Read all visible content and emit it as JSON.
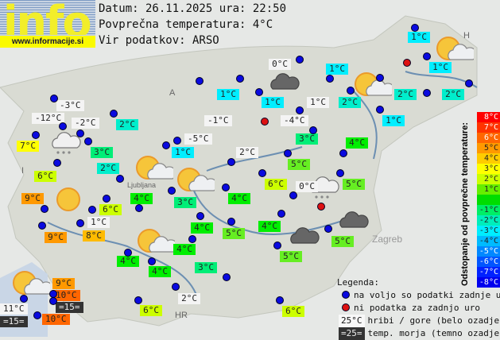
{
  "logo": {
    "word": "info",
    "url": "www.informacije.si"
  },
  "header": {
    "date_line": "Datum: 26.11.2025 ura: 22:50",
    "avg_line": "Povprečna temperatura: 4°C",
    "source_line": "Vir podatkov: ARSO"
  },
  "map_labels": [
    "A",
    "I",
    "HR",
    "H",
    "Ljubljana",
    "Zagreb"
  ],
  "stations": [
    {
      "t": "1°C",
      "c": "#00eeff"
    },
    {
      "t": "1°C",
      "c": "#00eeff"
    },
    {
      "t": "0°C",
      "c": "#f4f4f4"
    },
    {
      "t": "1°C",
      "c": "#00eeff"
    },
    {
      "t": "1°C",
      "c": "#00eeff"
    },
    {
      "t": "1°C",
      "c": "#00eeff"
    },
    {
      "t": "1°C",
      "c": "#f4f4f4"
    },
    {
      "t": "2°C",
      "c": "#00eecc"
    },
    {
      "t": "2°C",
      "c": "#00eecc"
    },
    {
      "t": "2°C",
      "c": "#00eecc"
    },
    {
      "t": "1°C",
      "c": "#00eeff"
    },
    {
      "t": "-3°C",
      "c": "#f4f4f4"
    },
    {
      "t": "-12°C",
      "c": "#f4f4f4"
    },
    {
      "t": "-2°C",
      "c": "#f4f4f4"
    },
    {
      "t": "2°C",
      "c": "#00eecc"
    },
    {
      "t": "-1°C",
      "c": "#f4f4f4"
    },
    {
      "t": "-4°C",
      "c": "#f4f4f4"
    },
    {
      "t": "7°C",
      "c": "#ffff00"
    },
    {
      "t": "3°C",
      "c": "#00ee77"
    },
    {
      "t": "-5°C",
      "c": "#f4f4f4"
    },
    {
      "t": "1°C",
      "c": "#00eeff"
    },
    {
      "t": "2°C",
      "c": "#f4f4f4"
    },
    {
      "t": "3°C",
      "c": "#00ee77"
    },
    {
      "t": "4°C",
      "c": "#00ee00"
    },
    {
      "t": "2°C",
      "c": "#00eecc"
    },
    {
      "t": "6°C",
      "c": "#ccff00"
    },
    {
      "t": "5°C",
      "c": "#66ee22"
    },
    {
      "t": "6°C",
      "c": "#ccff00"
    },
    {
      "t": "0°C",
      "c": "#f4f4f4"
    },
    {
      "t": "5°C",
      "c": "#66ee22"
    },
    {
      "t": "9°C",
      "c": "#ff9900"
    },
    {
      "t": "4°C",
      "c": "#00ee00"
    },
    {
      "t": "3°C",
      "c": "#00ee77"
    },
    {
      "t": "4°C",
      "c": "#00ee00"
    },
    {
      "t": "6°C",
      "c": "#ccff00"
    },
    {
      "t": "1°C",
      "c": "#f4f4f4"
    },
    {
      "t": "9°C",
      "c": "#ff9900"
    },
    {
      "t": "8°C",
      "c": "#ffbb00"
    },
    {
      "t": "4°C",
      "c": "#00ee00"
    },
    {
      "t": "5°C",
      "c": "#66ee22"
    },
    {
      "t": "4°C",
      "c": "#00ee00"
    },
    {
      "t": "5°C",
      "c": "#66ee22"
    },
    {
      "t": "5°C",
      "c": "#66ee22"
    },
    {
      "t": "4°C",
      "c": "#00ee00"
    },
    {
      "t": "4°C",
      "c": "#00ee00"
    },
    {
      "t": "4°C",
      "c": "#00ee00"
    },
    {
      "t": "3°C",
      "c": "#00ee77"
    },
    {
      "t": "9°C",
      "c": "#ff9900"
    },
    {
      "t": "10°C",
      "c": "#ff6600"
    },
    {
      "t": "=15=",
      "c": "#333333"
    },
    {
      "t": "11°C",
      "c": "#f4f4f4"
    },
    {
      "t": "=15=",
      "c": "#333333"
    },
    {
      "t": "10°C",
      "c": "#ff6600"
    },
    {
      "t": "2°C",
      "c": "#f4f4f4"
    },
    {
      "t": "6°C",
      "c": "#ccff00"
    },
    {
      "t": "6°C",
      "c": "#ccff00"
    }
  ],
  "dot_colors": {
    "available": "#0a0adf",
    "missing": "#dd1111"
  },
  "scale": {
    "title": "Odstopanje od povprečne temperature:",
    "items": [
      {
        "t": "8°C",
        "c": "#ff0000"
      },
      {
        "t": "7°C",
        "c": "#ff3300"
      },
      {
        "t": "6°C",
        "c": "#ff6600"
      },
      {
        "t": "5°C",
        "c": "#ff9900"
      },
      {
        "t": "4°C",
        "c": "#ffcc00"
      },
      {
        "t": "3°C",
        "c": "#ffff00"
      },
      {
        "t": "2°C",
        "c": "#ccff00"
      },
      {
        "t": "1°C",
        "c": "#66ee00"
      },
      {
        "t": "",
        "c": "#00dd00"
      },
      {
        "t": "-1°C",
        "c": "#00ee66"
      },
      {
        "t": "-2°C",
        "c": "#00eebb"
      },
      {
        "t": "-3°C",
        "c": "#00eeff"
      },
      {
        "t": "-4°C",
        "c": "#00bbff"
      },
      {
        "t": "-5°C",
        "c": "#0088ff"
      },
      {
        "t": "-6°C",
        "c": "#0055ff"
      },
      {
        "t": "-7°C",
        "c": "#0022ff"
      },
      {
        "t": "-8°C",
        "c": "#0000ee"
      }
    ]
  },
  "legend": {
    "title": "Legenda:",
    "available": "na voljo so podatki zadnje ure",
    "missing": "ni podatka za zadnjo uro",
    "mountain_sample": "25°C",
    "mountain": "hribi / gore (belo ozadje)",
    "sea_sample": "=25=",
    "sea": "temp. morja (temno ozadje)"
  },
  "weather_icons": [
    "sun-cloud",
    "sun-cloud",
    "sun-cloud",
    "sun-cloud",
    "sun-cloud",
    "sun-cloud",
    "dark-cloud",
    "dark-cloud",
    "dark-cloud",
    "snow-cloud",
    "snow-cloud",
    "sun"
  ]
}
